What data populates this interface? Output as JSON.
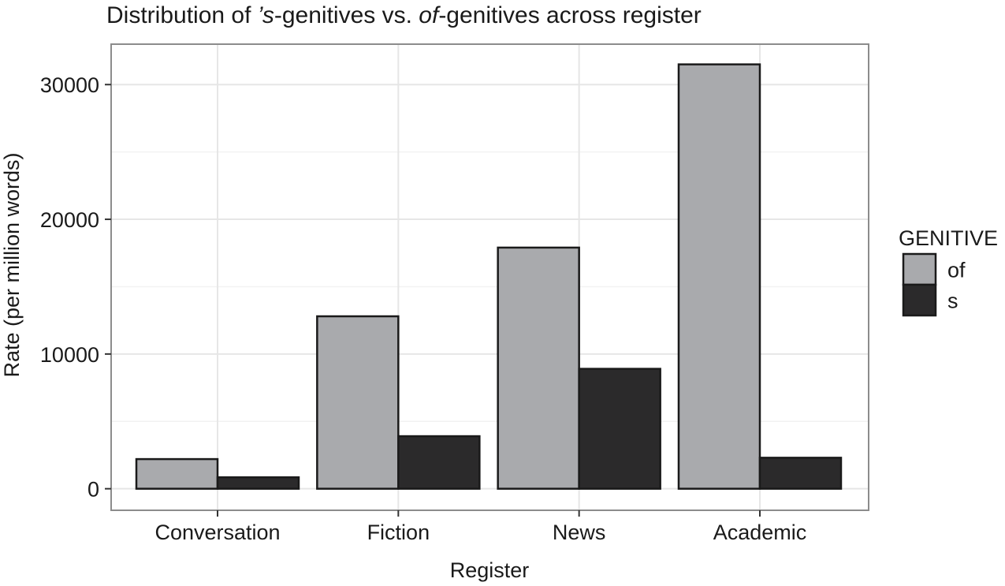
{
  "chart_data": {
    "type": "bar",
    "title_parts": [
      {
        "text": "Distribution of ",
        "italic": false
      },
      {
        "text": "’s",
        "italic": true
      },
      {
        "text": "-genitives vs. ",
        "italic": false
      },
      {
        "text": "of",
        "italic": true
      },
      {
        "text": "-genitives across register",
        "italic": false
      }
    ],
    "xlabel": "Register",
    "ylabel": "Rate (per million words)",
    "categories": [
      "Conversation",
      "Fiction",
      "News",
      "Academic"
    ],
    "series": [
      {
        "name": "of",
        "color": "#a9aaad",
        "values": [
          2200,
          12800,
          17900,
          31500
        ]
      },
      {
        "name": "s",
        "color": "#2b2a2b",
        "values": [
          850,
          3900,
          8900,
          2300
        ]
      }
    ],
    "yticks": [
      0,
      10000,
      20000,
      30000
    ],
    "ytick_labels": [
      "0",
      "10000",
      "20000",
      "30000"
    ],
    "ylim": [
      -1600,
      33000
    ],
    "grid": true,
    "legend": {
      "title": "GENITIVE",
      "position": "right"
    }
  }
}
